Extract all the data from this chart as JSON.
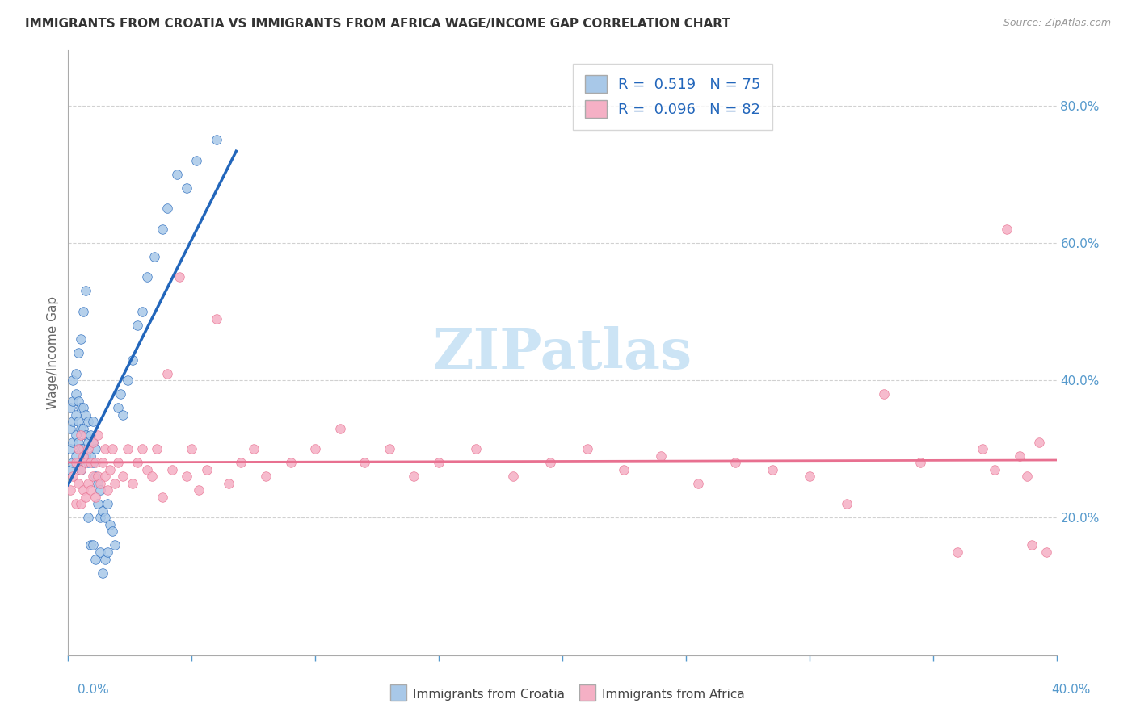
{
  "title": "IMMIGRANTS FROM CROATIA VS IMMIGRANTS FROM AFRICA WAGE/INCOME GAP CORRELATION CHART",
  "source": "Source: ZipAtlas.com",
  "ylabel": "Wage/Income Gap",
  "R_croatia": 0.519,
  "N_croatia": 75,
  "R_africa": 0.096,
  "N_africa": 82,
  "color_croatia": "#a8c8e8",
  "color_africa": "#f5b0c5",
  "line_color_croatia": "#2266bb",
  "line_color_africa": "#e87090",
  "background_color": "#ffffff",
  "grid_color": "#cccccc",
  "title_color": "#333333",
  "axis_label_color": "#5599cc",
  "watermark_color": "#cce4f5",
  "xlim_min": 0.0,
  "xlim_max": 0.4,
  "ylim_min": 0.0,
  "ylim_max": 0.88,
  "croatia_x": [
    0.001,
    0.001,
    0.001,
    0.001,
    0.002,
    0.002,
    0.002,
    0.002,
    0.002,
    0.003,
    0.003,
    0.003,
    0.003,
    0.003,
    0.004,
    0.004,
    0.004,
    0.004,
    0.004,
    0.005,
    0.005,
    0.005,
    0.005,
    0.005,
    0.006,
    0.006,
    0.006,
    0.006,
    0.007,
    0.007,
    0.007,
    0.007,
    0.008,
    0.008,
    0.008,
    0.008,
    0.009,
    0.009,
    0.009,
    0.01,
    0.01,
    0.01,
    0.01,
    0.011,
    0.011,
    0.011,
    0.012,
    0.012,
    0.013,
    0.013,
    0.013,
    0.014,
    0.014,
    0.015,
    0.015,
    0.016,
    0.016,
    0.017,
    0.018,
    0.019,
    0.02,
    0.021,
    0.022,
    0.024,
    0.026,
    0.028,
    0.03,
    0.032,
    0.035,
    0.038,
    0.04,
    0.044,
    0.048,
    0.052,
    0.06
  ],
  "croatia_y": [
    0.27,
    0.3,
    0.33,
    0.36,
    0.28,
    0.31,
    0.34,
    0.37,
    0.4,
    0.29,
    0.32,
    0.35,
    0.38,
    0.41,
    0.28,
    0.31,
    0.34,
    0.37,
    0.44,
    0.27,
    0.3,
    0.33,
    0.36,
    0.46,
    0.3,
    0.33,
    0.36,
    0.5,
    0.29,
    0.32,
    0.35,
    0.53,
    0.28,
    0.31,
    0.34,
    0.2,
    0.29,
    0.32,
    0.16,
    0.28,
    0.31,
    0.34,
    0.16,
    0.26,
    0.3,
    0.14,
    0.22,
    0.25,
    0.2,
    0.24,
    0.15,
    0.21,
    0.12,
    0.2,
    0.14,
    0.22,
    0.15,
    0.19,
    0.18,
    0.16,
    0.36,
    0.38,
    0.35,
    0.4,
    0.43,
    0.48,
    0.5,
    0.55,
    0.58,
    0.62,
    0.65,
    0.7,
    0.68,
    0.72,
    0.75
  ],
  "africa_x": [
    0.001,
    0.002,
    0.003,
    0.003,
    0.004,
    0.004,
    0.005,
    0.005,
    0.005,
    0.006,
    0.006,
    0.007,
    0.007,
    0.008,
    0.008,
    0.009,
    0.009,
    0.01,
    0.01,
    0.011,
    0.011,
    0.012,
    0.012,
    0.013,
    0.014,
    0.015,
    0.015,
    0.016,
    0.017,
    0.018,
    0.019,
    0.02,
    0.022,
    0.024,
    0.026,
    0.028,
    0.03,
    0.032,
    0.034,
    0.036,
    0.038,
    0.04,
    0.042,
    0.045,
    0.048,
    0.05,
    0.053,
    0.056,
    0.06,
    0.065,
    0.07,
    0.075,
    0.08,
    0.09,
    0.1,
    0.11,
    0.12,
    0.13,
    0.14,
    0.15,
    0.165,
    0.18,
    0.195,
    0.21,
    0.225,
    0.24,
    0.255,
    0.27,
    0.285,
    0.3,
    0.315,
    0.33,
    0.345,
    0.36,
    0.37,
    0.375,
    0.38,
    0.385,
    0.388,
    0.39,
    0.393,
    0.396
  ],
  "africa_y": [
    0.24,
    0.26,
    0.22,
    0.28,
    0.25,
    0.3,
    0.22,
    0.27,
    0.32,
    0.24,
    0.29,
    0.23,
    0.28,
    0.25,
    0.3,
    0.24,
    0.28,
    0.26,
    0.31,
    0.23,
    0.28,
    0.26,
    0.32,
    0.25,
    0.28,
    0.26,
    0.3,
    0.24,
    0.27,
    0.3,
    0.25,
    0.28,
    0.26,
    0.3,
    0.25,
    0.28,
    0.3,
    0.27,
    0.26,
    0.3,
    0.23,
    0.41,
    0.27,
    0.55,
    0.26,
    0.3,
    0.24,
    0.27,
    0.49,
    0.25,
    0.28,
    0.3,
    0.26,
    0.28,
    0.3,
    0.33,
    0.28,
    0.3,
    0.26,
    0.28,
    0.3,
    0.26,
    0.28,
    0.3,
    0.27,
    0.29,
    0.25,
    0.28,
    0.27,
    0.26,
    0.22,
    0.38,
    0.28,
    0.15,
    0.3,
    0.27,
    0.62,
    0.29,
    0.26,
    0.16,
    0.31,
    0.15
  ]
}
